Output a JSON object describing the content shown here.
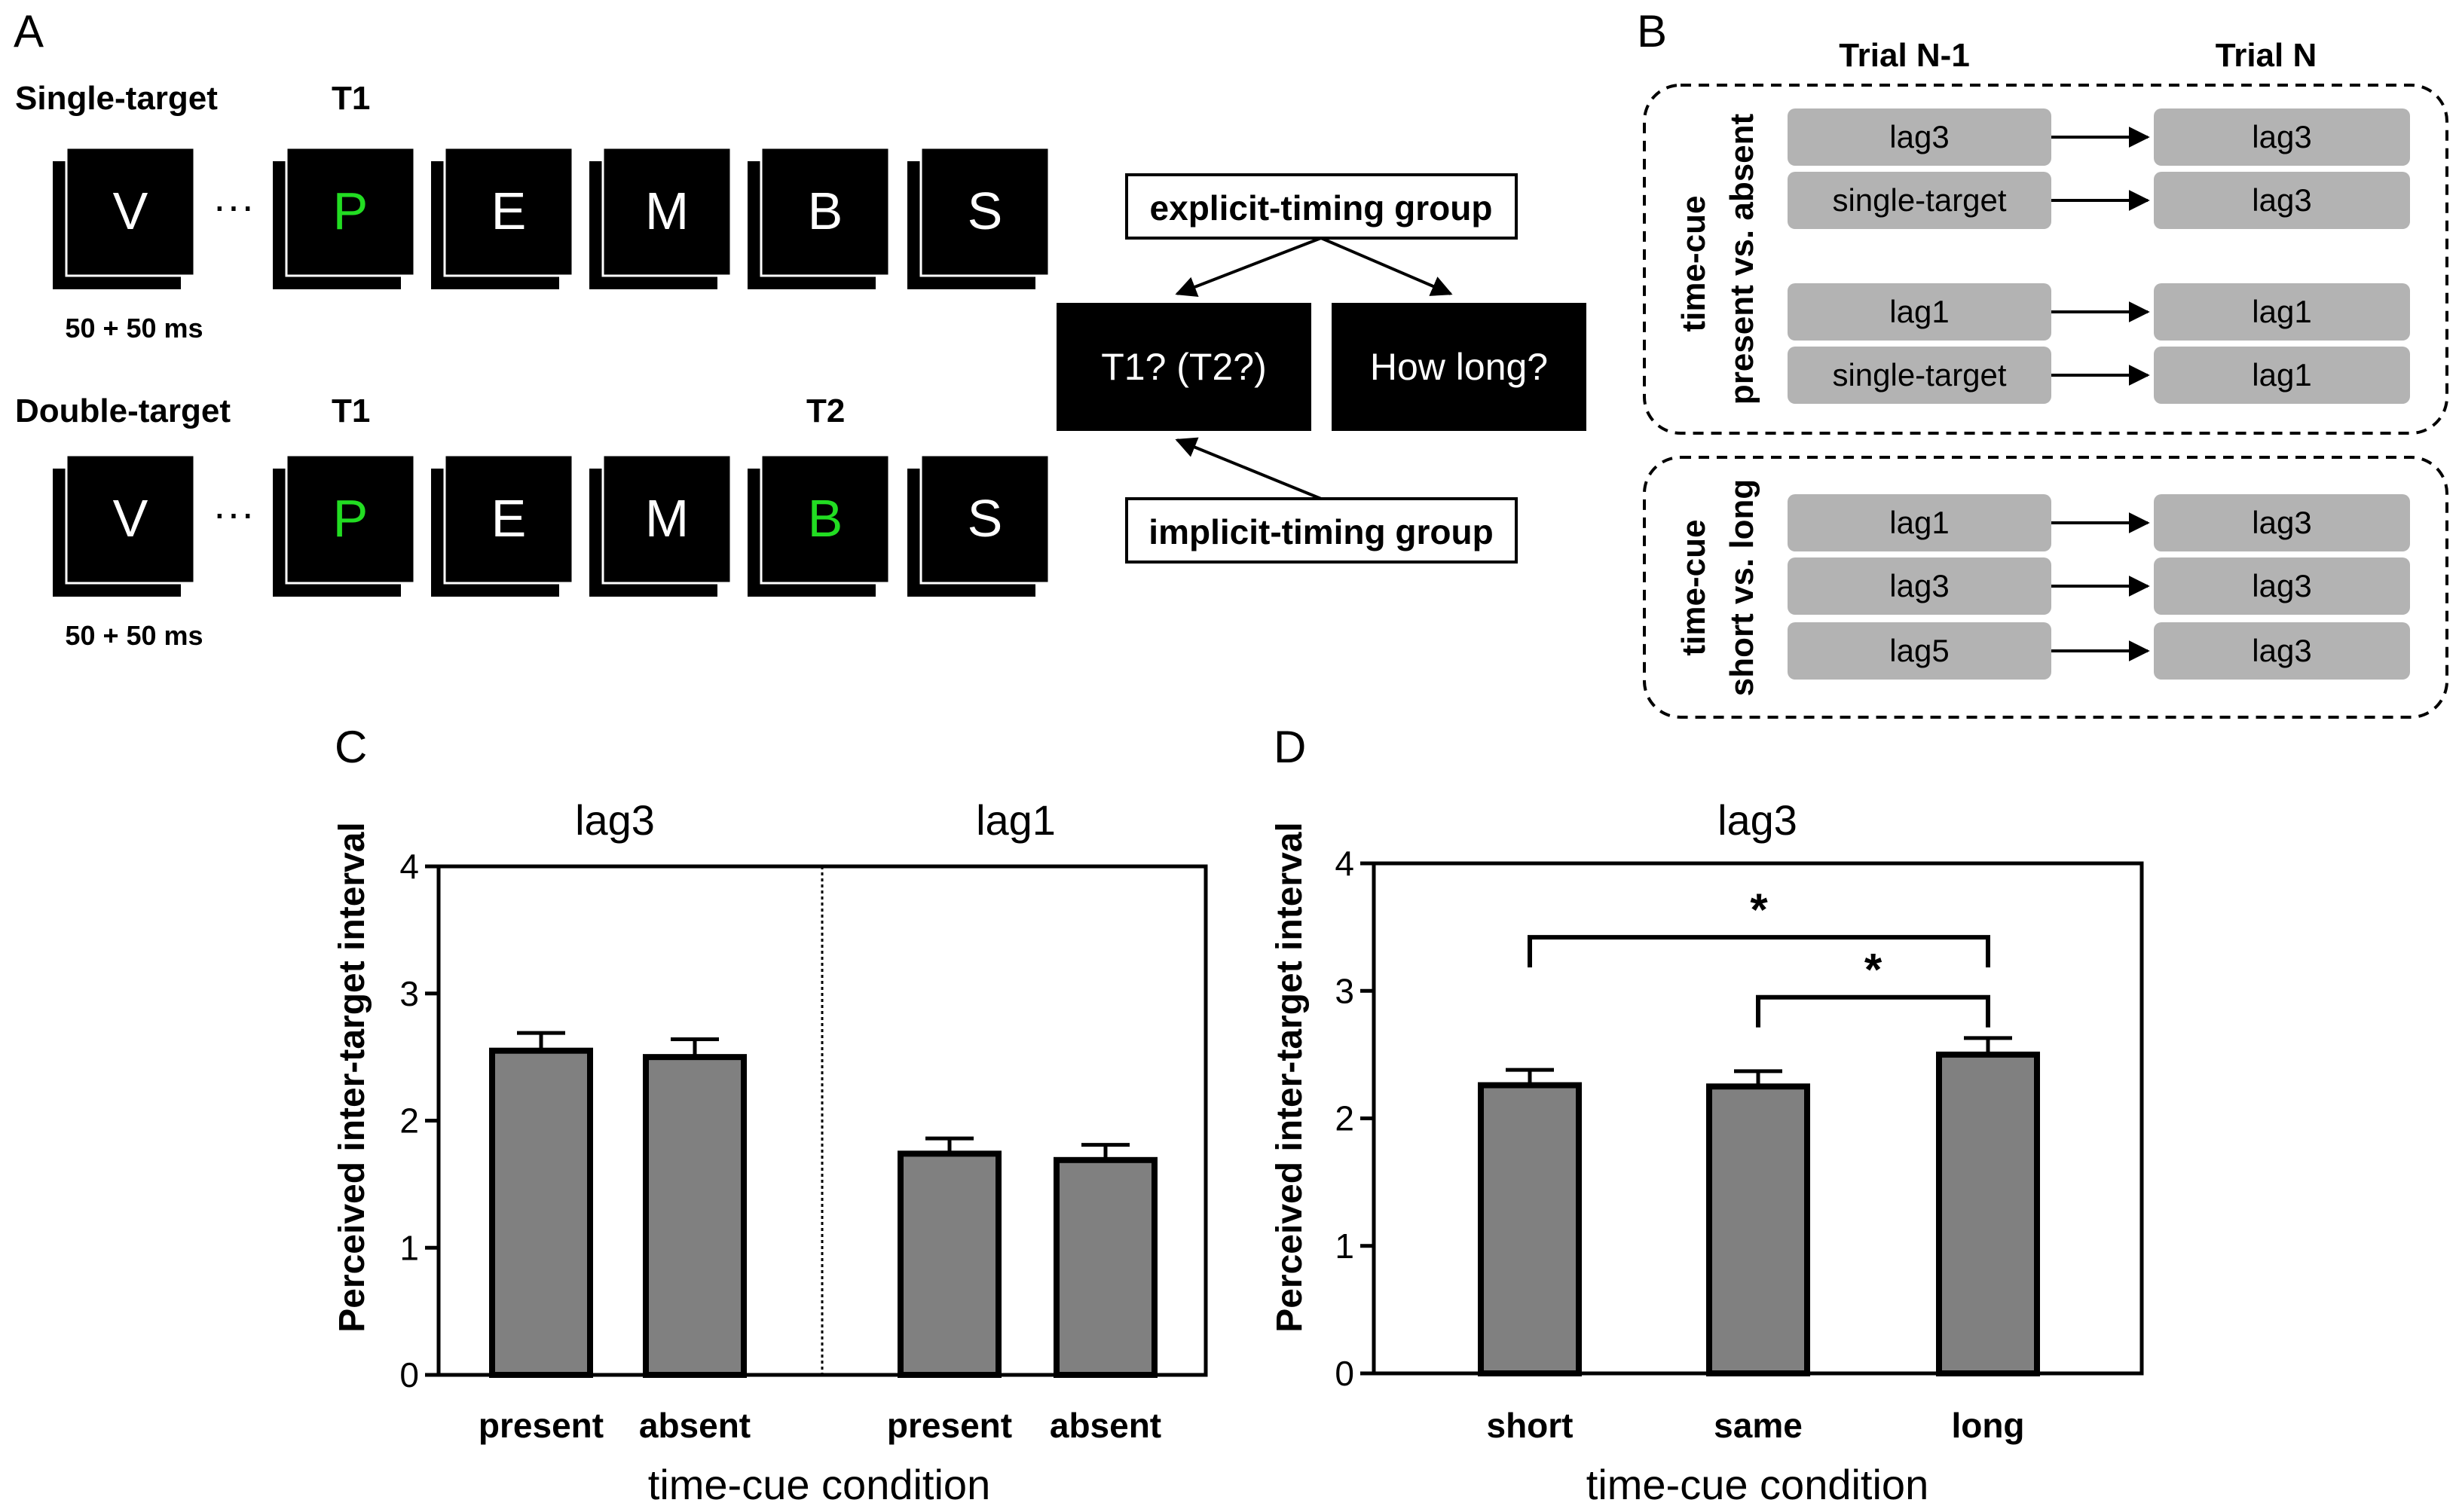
{
  "panel_letters": {
    "a": "A",
    "b": "B",
    "c": "C",
    "d": "D"
  },
  "panel_a": {
    "single_label": "Single-target",
    "double_label": "Double-target",
    "t1_label": "T1",
    "t2_label": "T2",
    "ellipsis": "···",
    "timing_label": "50 + 50 ms",
    "single_frames": [
      {
        "letter": "V",
        "color": "#ffffff"
      },
      {
        "letter": "P",
        "color": "#22dd22"
      },
      {
        "letter": "E",
        "color": "#ffffff"
      },
      {
        "letter": "M",
        "color": "#ffffff"
      },
      {
        "letter": "B",
        "color": "#ffffff"
      },
      {
        "letter": "S",
        "color": "#ffffff"
      }
    ],
    "double_frames": [
      {
        "letter": "V",
        "color": "#ffffff"
      },
      {
        "letter": "P",
        "color": "#22dd22"
      },
      {
        "letter": "E",
        "color": "#ffffff"
      },
      {
        "letter": "M",
        "color": "#ffffff"
      },
      {
        "letter": "B",
        "color": "#22dd22"
      },
      {
        "letter": "S",
        "color": "#ffffff"
      }
    ],
    "explicit_group": "explicit-timing group",
    "implicit_group": "implicit-timing group",
    "question_t1": "T1? (T2?)",
    "question_how_long": "How long?"
  },
  "panel_b": {
    "col_prev": "Trial N-1",
    "col_curr": "Trial N",
    "group1_label_line1": "time-cue",
    "group1_label_line2": "present vs. absent",
    "group2_label_line1": "time-cue",
    "group2_label_line2": "short vs. long",
    "group1_rows": [
      {
        "prev": "lag3",
        "curr": "lag3"
      },
      {
        "prev": "single-target",
        "curr": "lag3"
      },
      {
        "prev": "lag1",
        "curr": "lag1"
      },
      {
        "prev": "single-target",
        "curr": "lag1"
      }
    ],
    "group2_rows": [
      {
        "prev": "lag1",
        "curr": "lag3"
      },
      {
        "prev": "lag3",
        "curr": "lag3"
      },
      {
        "prev": "lag5",
        "curr": "lag3"
      }
    ],
    "box_color": "#b3b3b3"
  },
  "chart_data": [
    {
      "type": "bar",
      "panel": "C",
      "ylabel": "Perceived inter-target interval",
      "xlabel": "time-cue condition",
      "ylim": [
        0,
        4
      ],
      "yticks": [
        "0",
        "1",
        "2",
        "3",
        "4"
      ],
      "bar_color": "#808080",
      "groups": [
        {
          "title": "lag3",
          "categories": [
            "present",
            "absent"
          ],
          "values": [
            2.55,
            2.5
          ],
          "errors": [
            0.14,
            0.14
          ]
        },
        {
          "title": "lag1",
          "categories": [
            "present",
            "absent"
          ],
          "values": [
            1.74,
            1.69
          ],
          "errors": [
            0.12,
            0.12
          ]
        }
      ]
    },
    {
      "type": "bar",
      "panel": "D",
      "title": "lag3",
      "ylabel": "Perceived inter-target interval",
      "xlabel": "time-cue condition",
      "ylim": [
        0,
        4
      ],
      "yticks": [
        "0",
        "1",
        "2",
        "3",
        "4"
      ],
      "bar_color": "#808080",
      "categories": [
        "short",
        "same",
        "long"
      ],
      "values": [
        2.26,
        2.25,
        2.5
      ],
      "errors": [
        0.12,
        0.12,
        0.13
      ],
      "significance": [
        {
          "from": "short",
          "to": "long",
          "label": "*",
          "y": 3.42
        },
        {
          "from": "same",
          "to": "long",
          "label": "*",
          "y": 2.95
        }
      ]
    }
  ]
}
